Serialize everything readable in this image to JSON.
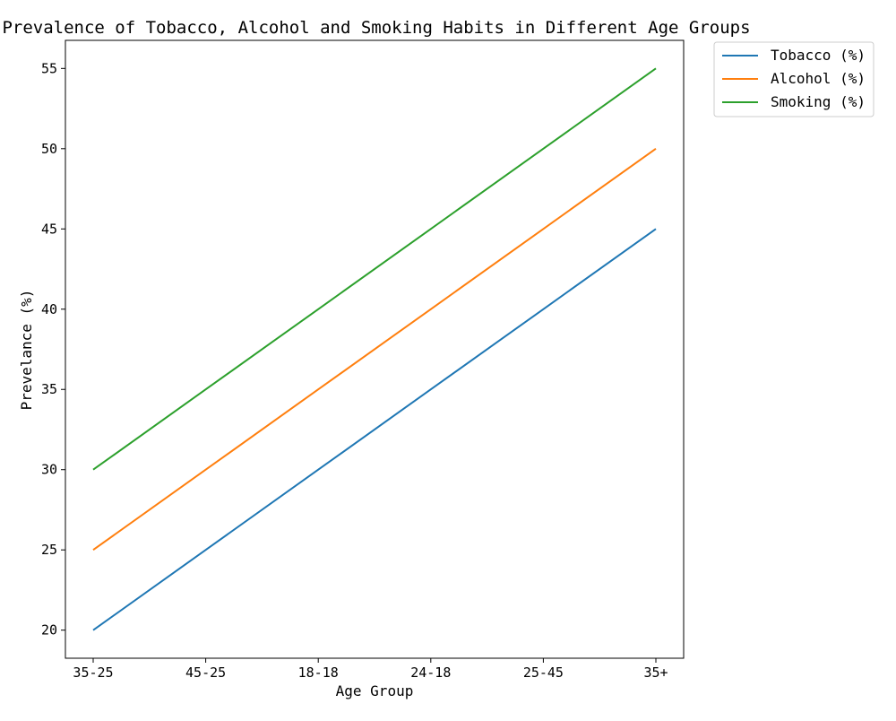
{
  "chart_data": {
    "type": "line",
    "title": "Prevalence of Tobacco, Alcohol and Smoking Habits in Different Age Groups",
    "xlabel": "Age Group",
    "ylabel": "Prevelance (%)",
    "categories": [
      "35-25",
      "45-25",
      "18-18",
      "24-18",
      "25-45",
      "35+"
    ],
    "series": [
      {
        "name": "Tobacco (%)",
        "color": "#1f77b4",
        "values": [
          20,
          25,
          30,
          35,
          40,
          45
        ]
      },
      {
        "name": "Alcohol (%)",
        "color": "#ff7f0e",
        "values": [
          25,
          30,
          35,
          40,
          45,
          50
        ]
      },
      {
        "name": "Smoking (%)",
        "color": "#2ca02c",
        "values": [
          30,
          35,
          40,
          45,
          50,
          55
        ]
      }
    ],
    "ylim": [
      18.25,
      56.75
    ],
    "yticks": [
      20,
      25,
      30,
      35,
      40,
      45,
      50,
      55
    ],
    "grid": false,
    "legend": "outside-top-right"
  }
}
